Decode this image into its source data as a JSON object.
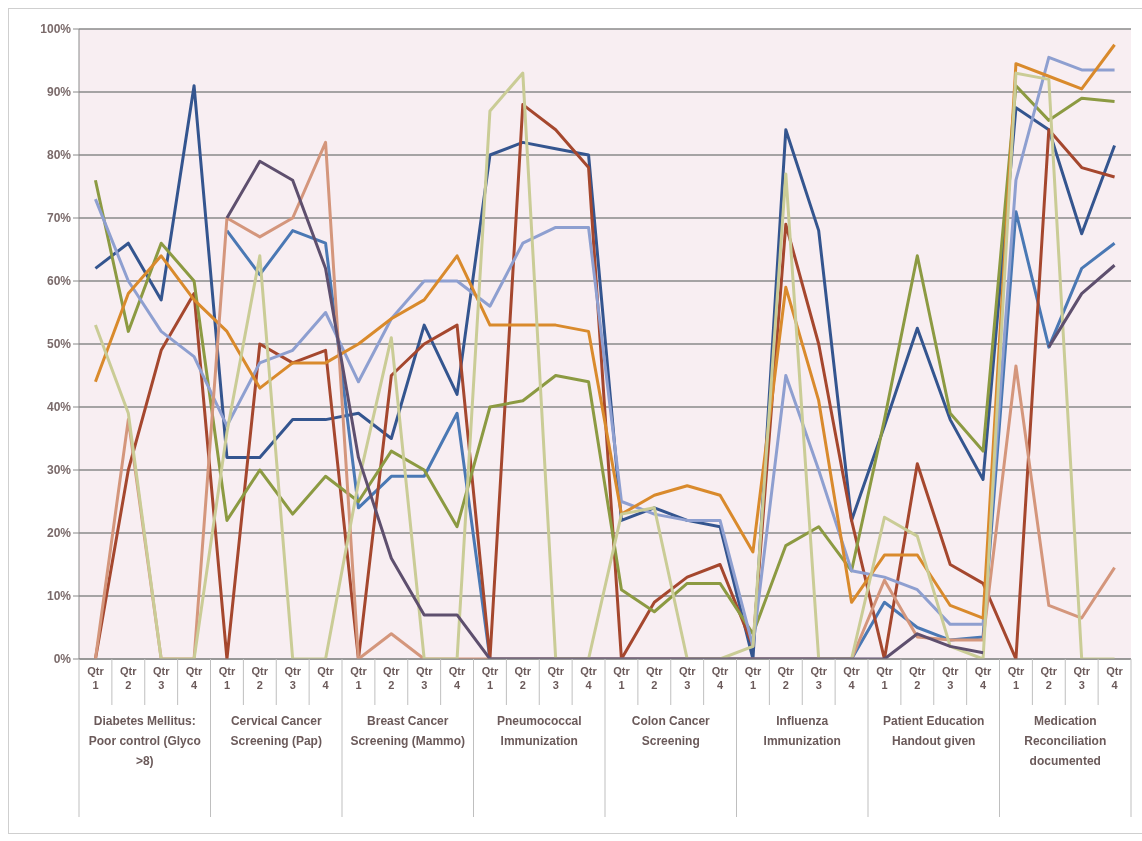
{
  "chart_data": {
    "type": "line",
    "categories": [
      "Qtr 1",
      "Qtr 2",
      "Qtr 3",
      "Qtr 4",
      "Qtr 1",
      "Qtr 2",
      "Qtr 3",
      "Qtr 4",
      "Qtr 1",
      "Qtr 2",
      "Qtr 3",
      "Qtr 4",
      "Qtr 1",
      "Qtr 2",
      "Qtr 3",
      "Qtr 4",
      "Qtr 1",
      "Qtr 2",
      "Qtr 3",
      "Qtr 4",
      "Qtr 1",
      "Qtr 2",
      "Qtr 3",
      "Qtr 4",
      "Qtr 1",
      "Qtr 2",
      "Qtr 3",
      "Qtr 4",
      "Qtr 1",
      "Qtr 2",
      "Qtr 3",
      "Qtr 4"
    ],
    "annotations": [
      "Diabetes Mellitus: Poor control (Glyco >8)",
      "Cervical Cancer Screening (Pap)",
      "Breast Cancer Screening (Mammo)",
      "Pneumococcal Immunization",
      "Colon Cancer Screening",
      "Influenza Immunization",
      "Patient Education Handout given",
      "Medication Reconciliation documented"
    ],
    "series": [
      {
        "color": "#34558f",
        "values": [
          62,
          66,
          57,
          91,
          32,
          32,
          38,
          38,
          39,
          35,
          53,
          42,
          80,
          82,
          81,
          80,
          22,
          24,
          22,
          21,
          0,
          84,
          68,
          22,
          37,
          52.5,
          38,
          28.5,
          87.5,
          84,
          67.5,
          81.5
        ]
      },
      {
        "color": "#4a78b4",
        "values": [
          null,
          null,
          null,
          null,
          68,
          61,
          68,
          66,
          24,
          29,
          29,
          39,
          0,
          0,
          0,
          0,
          0,
          0,
          0,
          0,
          0,
          0,
          0,
          0,
          9,
          5,
          3,
          3.5,
          71,
          49.5,
          62,
          66
        ]
      },
      {
        "color": "#a5472e",
        "values": [
          0,
          30,
          49,
          58,
          0,
          50,
          47,
          49,
          0,
          45,
          50,
          53,
          0,
          88,
          84,
          78,
          0,
          9,
          13,
          15,
          2,
          69,
          50,
          22,
          0,
          31,
          15,
          12,
          0,
          84,
          78,
          76.5
        ]
      },
      {
        "color": "#8c9a42",
        "values": [
          76,
          52,
          66,
          60,
          22,
          30,
          23,
          29,
          25,
          33,
          30,
          21,
          40,
          41,
          45,
          44,
          11,
          7.5,
          12,
          12,
          4,
          18,
          21,
          14,
          38,
          64,
          39,
          33,
          91,
          85.5,
          89,
          88.5
        ]
      },
      {
        "color": "#8e9fd0",
        "values": [
          73,
          60,
          52,
          48,
          37,
          47,
          49,
          55,
          44,
          54,
          60,
          60,
          56,
          66,
          68.5,
          68.5,
          25,
          23,
          22,
          22,
          2,
          45,
          30,
          14,
          13,
          11,
          5.5,
          5.5,
          76,
          95.5,
          93.5,
          93.5
        ]
      },
      {
        "color": "#d98a2c",
        "values": [
          44,
          58,
          64,
          57,
          52,
          43,
          47,
          47,
          50,
          54,
          57,
          64,
          53,
          53,
          53,
          52,
          23,
          26,
          27.5,
          26,
          17,
          59,
          41,
          9,
          16.5,
          16.5,
          8.5,
          6.5,
          94.5,
          92.5,
          90.5,
          97.5
        ]
      },
      {
        "color": "#d4967c",
        "values": [
          0,
          38,
          0,
          0,
          70,
          67,
          70,
          82,
          0,
          4,
          0,
          0,
          0,
          0,
          0,
          0,
          0,
          0,
          0,
          0,
          0,
          0,
          0,
          0,
          12.5,
          3.5,
          3,
          3,
          46.5,
          8.5,
          6.5,
          14.5
        ]
      },
      {
        "color": "#cacc96",
        "values": [
          53,
          39,
          0,
          0,
          36,
          64,
          0,
          0,
          28,
          51,
          0,
          0,
          87,
          93,
          0,
          0,
          23,
          24,
          0,
          0,
          2,
          77,
          0,
          0,
          22.5,
          19.5,
          2,
          0,
          93,
          92,
          0,
          0
        ]
      },
      {
        "color": "#5e4f6e",
        "values": [
          null,
          null,
          null,
          null,
          70,
          79,
          76,
          62,
          32,
          16,
          7,
          7,
          0,
          0,
          0,
          0,
          0,
          0,
          0,
          0,
          0,
          0,
          0,
          0,
          0,
          4,
          2,
          1,
          null,
          49.5,
          58,
          62.5
        ]
      }
    ],
    "ylim": [
      0,
      100
    ],
    "yticks": [
      {
        "value": 0,
        "label": "0%"
      },
      {
        "value": 10,
        "label": "10%"
      },
      {
        "value": 20,
        "label": "20%"
      },
      {
        "value": 30,
        "label": "30%"
      },
      {
        "value": 40,
        "label": "40%"
      },
      {
        "value": 50,
        "label": "50%"
      },
      {
        "value": 60,
        "label": "60%"
      },
      {
        "value": 70,
        "label": "70%"
      },
      {
        "value": 80,
        "label": "80%"
      },
      {
        "value": 90,
        "label": "90%"
      },
      {
        "value": 100,
        "label": "100%"
      }
    ],
    "grid": "y",
    "legend": false,
    "marker": "none",
    "line_style": "solid"
  }
}
